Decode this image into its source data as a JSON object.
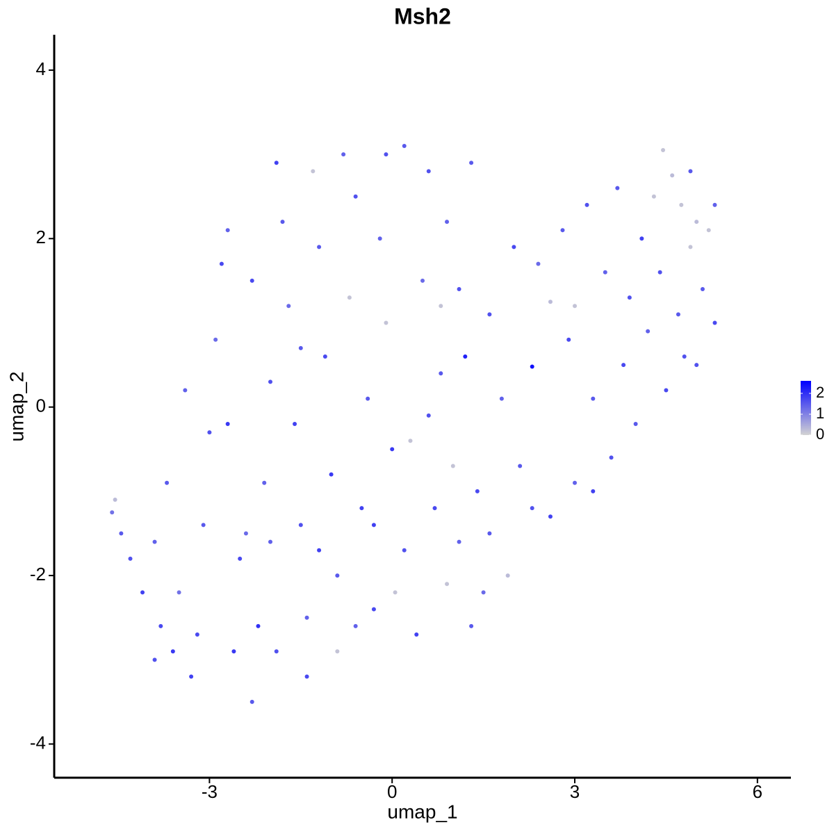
{
  "chart_data": {
    "type": "scatter",
    "title": "Msh2",
    "x_label": "umap_1",
    "y_label": "umap_2",
    "xlim": [
      -5.55,
      6.55
    ],
    "ylim": [
      -4.4,
      4.42
    ],
    "xticks": [
      -3,
      0,
      3,
      6
    ],
    "yticks": [
      -4,
      -2,
      0,
      2,
      4
    ],
    "color_low": "#d3d3d3",
    "color_high": "#0000ff",
    "color_range": [
      0,
      2.6
    ],
    "color_ticks": [
      0,
      1,
      2
    ],
    "x": [
      -4.6,
      -4.55,
      -4.45,
      -4.3,
      -4.1,
      -3.9,
      -3.8,
      -3.6,
      -3.5,
      -3.3,
      -3.1,
      -3.0,
      -2.9,
      -2.8,
      -2.7,
      -2.6,
      -2.5,
      -2.3,
      -2.2,
      -2.1,
      -2.0,
      -1.9,
      -1.8,
      -1.7,
      -1.6,
      -1.5,
      -1.4,
      -1.4,
      -1.3,
      -1.2,
      -1.1,
      -1.0,
      -0.9,
      -0.9,
      -0.8,
      -0.7,
      -0.6,
      -0.5,
      -0.4,
      -0.3,
      -0.2,
      -0.1,
      0.0,
      0.05,
      -0.1,
      0.2,
      0.3,
      0.4,
      0.5,
      0.6,
      0.7,
      0.8,
      0.8,
      0.9,
      1.0,
      1.1,
      1.1,
      1.2,
      1.3,
      1.4,
      1.5,
      1.6,
      1.8,
      1.9,
      2.0,
      2.1,
      2.3,
      2.3,
      2.4,
      2.6,
      2.6,
      2.8,
      2.9,
      3.0,
      3.0,
      3.2,
      3.3,
      3.3,
      3.5,
      3.6,
      3.7,
      3.8,
      3.9,
      4.0,
      4.1,
      4.2,
      4.3,
      4.4,
      4.45,
      4.5,
      4.6,
      4.7,
      4.75,
      4.8,
      4.9,
      5.0,
      5.1,
      5.2,
      5.3,
      5.3,
      5.0,
      4.9,
      -3.7,
      -3.2,
      -2.7,
      -2.4,
      -1.9,
      -1.2,
      -0.6,
      0.2,
      1.3,
      -3.4,
      -2.3,
      -1.5,
      -0.3,
      0.6,
      -2.0,
      -3.9,
      0.9,
      1.6
    ],
    "y": [
      -1.25,
      -1.1,
      -1.5,
      -1.8,
      -2.2,
      -1.6,
      -2.6,
      -2.9,
      -2.2,
      -3.2,
      -1.4,
      -0.3,
      0.8,
      1.7,
      2.1,
      -2.9,
      -1.8,
      -3.5,
      -2.6,
      -0.9,
      0.3,
      2.9,
      2.2,
      1.2,
      -0.2,
      -1.4,
      -2.5,
      -3.2,
      2.8,
      1.9,
      0.6,
      -0.8,
      -2.0,
      -2.9,
      3.0,
      1.3,
      2.5,
      -1.2,
      0.1,
      -2.4,
      2.0,
      3.0,
      -0.5,
      -2.2,
      1.0,
      3.1,
      -0.4,
      -2.7,
      1.5,
      2.8,
      -1.2,
      0.4,
      1.2,
      -2.1,
      -0.7,
      1.4,
      -1.6,
      0.6,
      2.9,
      -1.0,
      -2.2,
      1.1,
      0.1,
      -2.0,
      1.9,
      -0.7,
      0.48,
      -1.2,
      1.7,
      -1.3,
      1.25,
      2.1,
      0.8,
      -0.9,
      1.2,
      2.4,
      0.1,
      -1.0,
      1.6,
      -0.6,
      2.6,
      0.5,
      1.3,
      -0.2,
      2.0,
      0.9,
      2.5,
      1.6,
      3.05,
      0.2,
      2.75,
      1.1,
      2.4,
      0.6,
      1.9,
      2.2,
      1.4,
      2.1,
      2.4,
      1.0,
      0.5,
      2.8,
      -0.9,
      -2.7,
      -0.2,
      -1.5,
      -2.9,
      -1.7,
      -2.6,
      -1.7,
      -2.6,
      0.2,
      1.5,
      0.7,
      -1.4,
      -0.1,
      -1.6,
      -3.0,
      2.2,
      -1.5
    ],
    "values": [
      1.2,
      0.3,
      1.5,
      1.6,
      1.8,
      1.4,
      1.7,
      1.9,
      1.2,
      1.8,
      1.5,
      1.6,
      1.3,
      1.7,
      1.4,
      1.9,
      1.7,
      1.5,
      2.0,
      1.4,
      1.6,
      1.8,
      1.5,
      1.3,
      1.8,
      1.6,
      1.4,
      1.7,
      0.2,
      1.5,
      1.7,
      1.9,
      1.5,
      0.2,
      1.4,
      0.2,
      1.6,
      1.8,
      1.5,
      1.7,
      1.4,
      1.6,
      1.9,
      0.2,
      0.2,
      1.5,
      0.2,
      1.8,
      1.3,
      1.6,
      1.7,
      1.5,
      0.2,
      0.2,
      0.2,
      1.6,
      1.4,
      2.2,
      1.5,
      1.7,
      1.3,
      1.6,
      1.4,
      0.3,
      1.7,
      1.5,
      2.4,
      1.6,
      1.3,
      1.8,
      0.3,
      1.5,
      1.7,
      1.4,
      0.2,
      1.6,
      1.5,
      1.8,
      1.4,
      1.6,
      1.5,
      1.7,
      1.6,
      1.5,
      1.8,
      1.4,
      0.2,
      1.6,
      0.2,
      1.7,
      0.3,
      1.5,
      0.2,
      1.6,
      0.2,
      0.3,
      1.5,
      0.2,
      1.4,
      1.7,
      1.6,
      1.5,
      1.5,
      1.7,
      1.9,
      1.3,
      1.6,
      1.8,
      1.4,
      1.6,
      1.5,
      1.4,
      1.7,
      1.5,
      1.8,
      1.6,
      1.4,
      1.6,
      1.4,
      1.5
    ]
  }
}
